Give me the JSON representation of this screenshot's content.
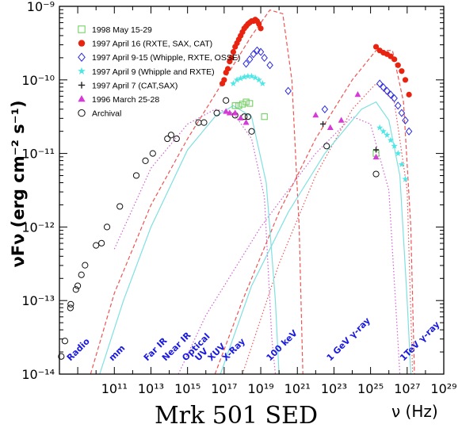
{
  "chart_data": {
    "type": "scatter",
    "title": "Mrk 501 SED",
    "xlabel": "ν (Hz)",
    "ylabel": "νFν (erg cm⁻² s⁻¹)",
    "xscale": "log",
    "yscale": "log",
    "xlim_log10": [
      8,
      29
    ],
    "ylim_log10": [
      -14,
      -9
    ],
    "x_tick_labels": [
      "10¹¹",
      "10¹³",
      "10¹⁵",
      "10¹⁷",
      "10¹⁹",
      "10²¹",
      "10²³",
      "10²⁵",
      "10²⁷",
      "10²⁹"
    ],
    "y_tick_labels": [
      "10⁻¹⁴",
      "10⁻¹³",
      "10⁻¹²",
      "10⁻¹¹",
      "10⁻¹⁰",
      "10⁻⁹"
    ],
    "band_labels": [
      {
        "text": "Radio",
        "x_log10": 8.6
      },
      {
        "text": "mm",
        "x_log10": 10.9
      },
      {
        "text": "Far IR",
        "x_log10": 12.8
      },
      {
        "text": "Near IR",
        "x_log10": 13.8
      },
      {
        "text": "Optical",
        "x_log10": 14.9
      },
      {
        "text": "UV",
        "x_log10": 15.6
      },
      {
        "text": "XUV",
        "x_log10": 16.3
      },
      {
        "text": "X-Ray",
        "x_log10": 17.1
      },
      {
        "text": "100 keV",
        "x_log10": 19.5
      },
      {
        "text": "1 GeV γ-ray",
        "x_log10": 22.8
      },
      {
        "text": "1TeV γ-ray",
        "x_log10": 26.8
      }
    ],
    "legend": [
      {
        "label": "1998 May 15-29",
        "marker": "open-square",
        "color": "#66cc55"
      },
      {
        "label": "1997 April 16 (RXTE, SAX, CAT)",
        "marker": "filled-circle",
        "color": "#e8230f"
      },
      {
        "label": "1997 April 9-15 (Whipple, RXTE, OSSE)",
        "marker": "open-diamond",
        "color": "#2a2ae0"
      },
      {
        "label": "1997 April 9 (Whipple and RXTE)",
        "marker": "filled-star",
        "color": "#4fe6e6"
      },
      {
        "label": "1997 April 7 (CAT,SAX)",
        "marker": "open-cross",
        "color": "#222222"
      },
      {
        "label": "1996 March 25-28",
        "marker": "filled-triangle",
        "color": "#d63ad6"
      },
      {
        "label": "Archival",
        "marker": "open-circle",
        "color": "#111111"
      }
    ],
    "series": [
      {
        "name": "Archival",
        "color": "#111111",
        "marker": "open-circle",
        "points": [
          [
            8.1,
            -13.76
          ],
          [
            8.3,
            -13.55
          ],
          [
            8.6,
            -13.1
          ],
          [
            8.62,
            -13.05
          ],
          [
            8.9,
            -12.85
          ],
          [
            9.0,
            -12.8
          ],
          [
            9.2,
            -12.65
          ],
          [
            9.4,
            -12.52
          ],
          [
            10.0,
            -12.25
          ],
          [
            10.3,
            -12.22
          ],
          [
            10.6,
            -12.0
          ],
          [
            11.3,
            -11.72
          ],
          [
            12.2,
            -11.3
          ],
          [
            12.7,
            -11.1
          ],
          [
            13.1,
            -11.0
          ],
          [
            13.9,
            -10.8
          ],
          [
            14.1,
            -10.75
          ],
          [
            14.4,
            -10.8
          ],
          [
            15.6,
            -10.58
          ],
          [
            15.9,
            -10.58
          ],
          [
            16.6,
            -10.45
          ],
          [
            17.1,
            -10.28
          ],
          [
            17.6,
            -10.48
          ],
          [
            18.1,
            -10.5
          ],
          [
            18.3,
            -10.5
          ],
          [
            18.5,
            -10.7
          ],
          [
            22.6,
            -10.9
          ],
          [
            25.3,
            -11.28
          ]
        ]
      },
      {
        "name": "1997 April 16 (RXTE, SAX, CAT)",
        "color": "#e8230f",
        "marker": "filled-circle",
        "points": [
          [
            16.9,
            -10.05
          ],
          [
            17.0,
            -10.0
          ],
          [
            17.1,
            -9.9
          ],
          [
            17.2,
            -9.85
          ],
          [
            17.3,
            -9.75
          ],
          [
            17.4,
            -9.7
          ],
          [
            17.5,
            -9.62
          ],
          [
            17.6,
            -9.55
          ],
          [
            17.7,
            -9.5
          ],
          [
            17.8,
            -9.45
          ],
          [
            17.9,
            -9.4
          ],
          [
            18.0,
            -9.35
          ],
          [
            18.1,
            -9.3
          ],
          [
            18.2,
            -9.27
          ],
          [
            18.3,
            -9.24
          ],
          [
            18.4,
            -9.22
          ],
          [
            18.5,
            -9.2
          ],
          [
            18.6,
            -9.2
          ],
          [
            18.7,
            -9.18
          ],
          [
            18.8,
            -9.2
          ],
          [
            18.9,
            -9.24
          ],
          [
            19.0,
            -9.3
          ],
          [
            25.3,
            -9.55
          ],
          [
            25.5,
            -9.6
          ],
          [
            25.7,
            -9.63
          ],
          [
            25.9,
            -9.65
          ],
          [
            26.1,
            -9.68
          ],
          [
            26.3,
            -9.72
          ],
          [
            26.5,
            -9.8
          ],
          [
            26.7,
            -9.88
          ],
          [
            26.9,
            -10.0
          ],
          [
            27.1,
            -10.2
          ]
        ]
      },
      {
        "name": "1997 April 9-15 (Whipple, RXTE, OSSE)",
        "color": "#2a2ae0",
        "marker": "open-diamond",
        "points": [
          [
            18.2,
            -9.78
          ],
          [
            18.4,
            -9.72
          ],
          [
            18.6,
            -9.65
          ],
          [
            18.8,
            -9.6
          ],
          [
            19.0,
            -9.62
          ],
          [
            19.2,
            -9.7
          ],
          [
            19.5,
            -9.8
          ],
          [
            20.5,
            -10.15
          ],
          [
            22.5,
            -10.4
          ],
          [
            25.5,
            -10.05
          ],
          [
            25.7,
            -10.1
          ],
          [
            25.9,
            -10.15
          ],
          [
            26.1,
            -10.2
          ],
          [
            26.3,
            -10.25
          ],
          [
            26.5,
            -10.35
          ],
          [
            26.7,
            -10.45
          ],
          [
            26.9,
            -10.55
          ],
          [
            27.1,
            -10.7
          ]
        ]
      },
      {
        "name": "1997 April 9 (Whipple and RXTE)",
        "color": "#4fe6e6",
        "marker": "filled-star",
        "points": [
          [
            17.5,
            -10.05
          ],
          [
            17.7,
            -10.0
          ],
          [
            17.9,
            -9.98
          ],
          [
            18.1,
            -9.96
          ],
          [
            18.3,
            -9.95
          ],
          [
            18.5,
            -9.95
          ],
          [
            18.7,
            -9.97
          ],
          [
            18.9,
            -10.0
          ],
          [
            19.1,
            -10.05
          ],
          [
            25.5,
            -10.65
          ],
          [
            25.7,
            -10.7
          ],
          [
            25.9,
            -10.75
          ],
          [
            26.1,
            -10.82
          ],
          [
            26.3,
            -10.9
          ],
          [
            26.5,
            -11.0
          ],
          [
            26.7,
            -11.15
          ],
          [
            26.9,
            -11.35
          ]
        ]
      },
      {
        "name": "1998 May 15-29",
        "color": "#66cc55",
        "marker": "open-square",
        "points": [
          [
            17.6,
            -10.35
          ],
          [
            17.8,
            -10.35
          ],
          [
            18.0,
            -10.33
          ],
          [
            18.2,
            -10.3
          ],
          [
            18.4,
            -10.32
          ],
          [
            19.2,
            -10.5
          ],
          [
            25.3,
            -11.0
          ]
        ]
      },
      {
        "name": "1997 April 7 (CAT,SAX)",
        "color": "#222222",
        "marker": "open-cross",
        "points": [
          [
            22.4,
            -10.6
          ],
          [
            25.3,
            -10.95
          ]
        ]
      },
      {
        "name": "1996 March 25-28",
        "color": "#d63ad6",
        "marker": "filled-triangle",
        "points": [
          [
            17.1,
            -10.43
          ],
          [
            17.3,
            -10.45
          ],
          [
            17.6,
            -10.45
          ],
          [
            17.9,
            -10.52
          ],
          [
            18.2,
            -10.58
          ],
          [
            22.0,
            -10.48
          ],
          [
            22.8,
            -10.65
          ],
          [
            23.4,
            -10.55
          ],
          [
            24.3,
            -10.2
          ],
          [
            25.3,
            -11.05
          ]
        ]
      }
    ],
    "curves": [
      {
        "style": "dotted",
        "color": "#d060d0",
        "points": [
          [
            11.0,
            -12.3
          ],
          [
            13.0,
            -11.2
          ],
          [
            15.0,
            -10.6
          ],
          [
            16.5,
            -10.4
          ],
          [
            17.5,
            -10.45
          ],
          [
            18.5,
            -10.8
          ],
          [
            19.2,
            -11.6
          ],
          [
            19.6,
            -13.5
          ],
          [
            19.8,
            -14.0
          ]
        ]
      },
      {
        "style": "dotted",
        "color": "#d060d0",
        "points": [
          [
            14.5,
            -14.0
          ],
          [
            16.0,
            -13.2
          ],
          [
            19.0,
            -12.0
          ],
          [
            22.0,
            -11.0
          ],
          [
            24.0,
            -10.5
          ],
          [
            25.0,
            -10.6
          ],
          [
            26.0,
            -11.5
          ],
          [
            26.6,
            -14.0
          ]
        ]
      },
      {
        "style": "dashed",
        "color": "#ee5555",
        "points": [
          [
            9.7,
            -14.0
          ],
          [
            11.0,
            -12.9
          ],
          [
            13.0,
            -11.7
          ],
          [
            15.0,
            -10.8
          ],
          [
            17.0,
            -10.0
          ],
          [
            18.5,
            -9.4
          ],
          [
            19.5,
            -9.05
          ],
          [
            20.2,
            -9.1
          ],
          [
            20.7,
            -10.0
          ],
          [
            21.1,
            -12.0
          ],
          [
            21.3,
            -14.0
          ]
        ]
      },
      {
        "style": "dashed",
        "color": "#ee5555",
        "points": [
          [
            16.5,
            -14.0
          ],
          [
            18.0,
            -13.0
          ],
          [
            20.0,
            -11.8
          ],
          [
            22.0,
            -10.8
          ],
          [
            24.0,
            -10.0
          ],
          [
            25.3,
            -9.6
          ],
          [
            26.2,
            -9.6
          ],
          [
            26.8,
            -10.3
          ],
          [
            27.2,
            -12.0
          ],
          [
            27.4,
            -14.0
          ]
        ]
      },
      {
        "style": "dotted",
        "color": "#ee5555",
        "points": [
          [
            18.0,
            -14.0
          ],
          [
            20.0,
            -12.5
          ],
          [
            22.0,
            -11.3
          ],
          [
            24.0,
            -10.4
          ],
          [
            25.3,
            -10.05
          ],
          [
            26.3,
            -10.3
          ],
          [
            27.0,
            -11.5
          ],
          [
            27.3,
            -14.0
          ]
        ]
      },
      {
        "style": "solid",
        "color": "#7fe0e0",
        "points": [
          [
            10.2,
            -14.0
          ],
          [
            11.5,
            -13.0
          ],
          [
            13.0,
            -12.0
          ],
          [
            15.0,
            -10.95
          ],
          [
            16.5,
            -10.5
          ],
          [
            17.5,
            -10.35
          ],
          [
            18.5,
            -10.5
          ],
          [
            19.3,
            -11.4
          ],
          [
            19.8,
            -13.0
          ],
          [
            20.0,
            -14.0
          ]
        ]
      },
      {
        "style": "solid",
        "color": "#7fe0e0",
        "points": [
          [
            16.8,
            -14.0
          ],
          [
            18.5,
            -12.8
          ],
          [
            20.5,
            -11.8
          ],
          [
            22.5,
            -11.0
          ],
          [
            24.5,
            -10.4
          ],
          [
            25.3,
            -10.3
          ],
          [
            26.0,
            -10.55
          ],
          [
            26.6,
            -11.3
          ],
          [
            27.0,
            -13.0
          ],
          [
            27.2,
            -14.0
          ]
        ]
      }
    ]
  }
}
